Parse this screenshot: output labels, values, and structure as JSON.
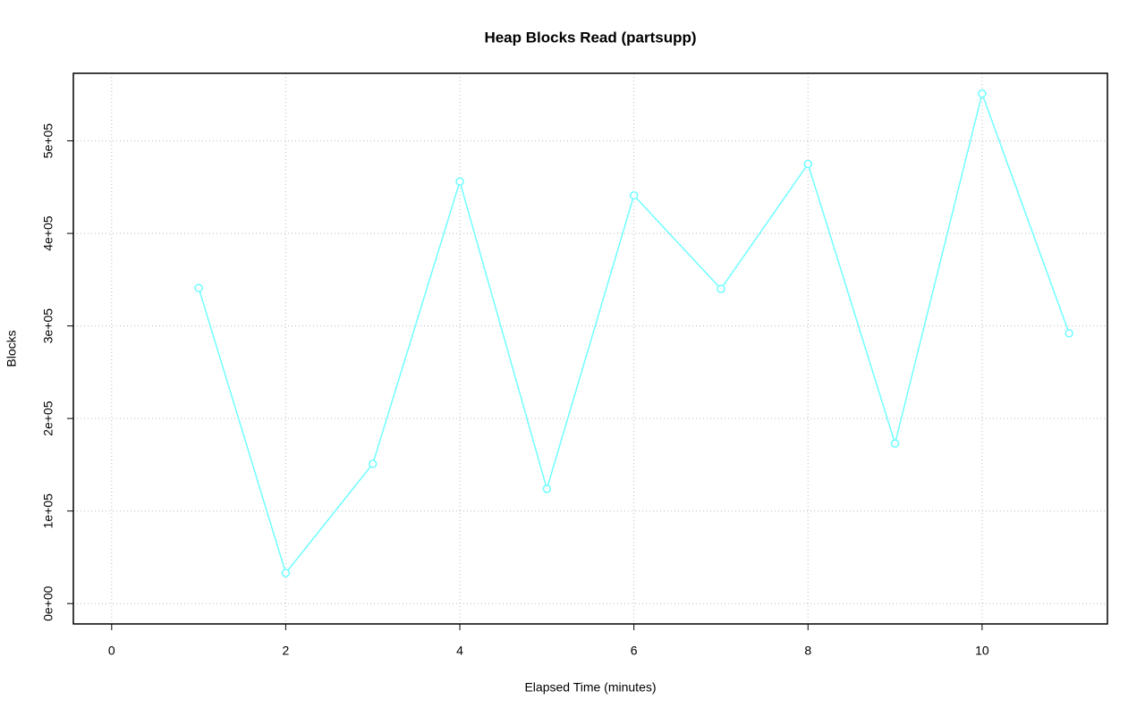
{
  "chart_data": {
    "type": "line",
    "title": "Heap Blocks Read (partsupp)",
    "x_label": "Elapsed Time (minutes)",
    "y_label": "Blocks",
    "x": [
      1,
      2,
      3,
      4,
      5,
      6,
      7,
      8,
      9,
      10,
      11
    ],
    "series": [
      {
        "color": "#70ffff",
        "values": [
          341000,
          33000,
          151000,
          456000,
          124000,
          441000,
          340000,
          475000,
          173000,
          551000,
          292000
        ]
      }
    ],
    "xlim": [
      -0.44,
      11.44
    ],
    "ylim": [
      -22000,
      573000
    ],
    "xticks": [
      0,
      2,
      4,
      6,
      8,
      10
    ],
    "yticks": [
      {
        "value": 0,
        "label": "0e+00"
      },
      {
        "value": 100000,
        "label": "1e+05"
      },
      {
        "value": 200000,
        "label": "2e+05"
      },
      {
        "value": 300000,
        "label": "3e+05"
      },
      {
        "value": 400000,
        "label": "4e+05"
      },
      {
        "value": 500000,
        "label": "5e+05"
      }
    ],
    "grid": true
  }
}
